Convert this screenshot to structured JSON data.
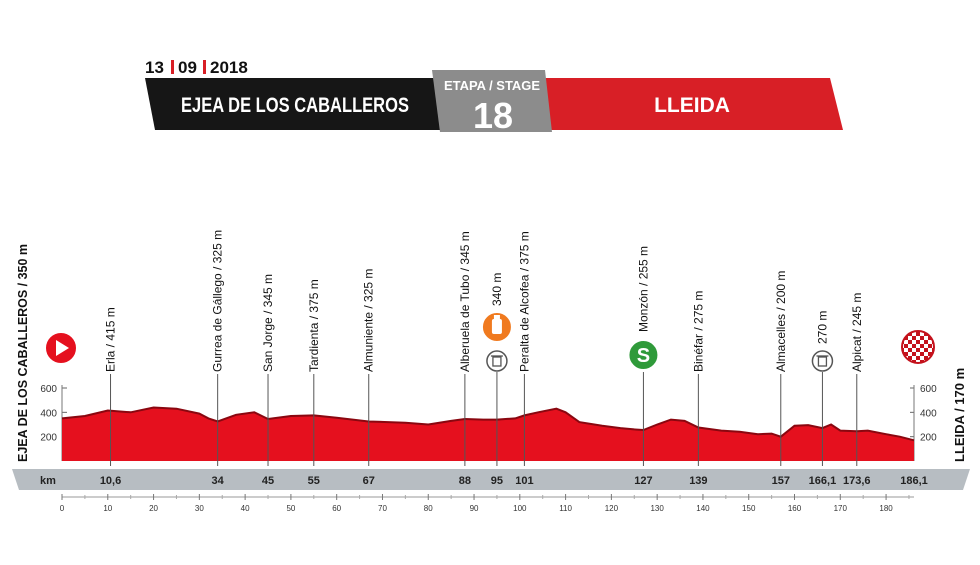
{
  "header": {
    "date_day": "13",
    "date_month": "09",
    "date_year": "2018",
    "start_city": "EJEA DE LOS CABALLEROS",
    "stage_label": "ETAPA / STAGE",
    "stage_number": "18",
    "finish_city": "LLEIDA"
  },
  "colors": {
    "profile_red": "#e5101e",
    "profile_dark": "#8a0710",
    "banner_black": "#161616",
    "banner_gray": "#8c8c8c",
    "banner_red": "#d81f26",
    "bar_gray": "#b7bdc2",
    "sprint_green": "#2f9a3a",
    "feed_orange": "#f07a1f"
  },
  "chart_data": {
    "type": "area",
    "title": "",
    "xlabel": "km",
    "ylabel": "",
    "xlim": [
      0,
      186.1
    ],
    "ylim": [
      0,
      700
    ],
    "yticks": [
      200,
      400,
      600
    ],
    "xticks": [
      0,
      10,
      20,
      30,
      40,
      50,
      60,
      70,
      80,
      90,
      100,
      110,
      120,
      130,
      140,
      150,
      160,
      170,
      180
    ],
    "start_label": "EJEA DE LOS CABALLEROS / 350 m",
    "finish_label": "LLEIDA / 170 m",
    "x_unit_label": "km",
    "profile": {
      "x": [
        0,
        5,
        10,
        15,
        20,
        25,
        30,
        32,
        34,
        38,
        42,
        45,
        50,
        55,
        60,
        67,
        75,
        80,
        85,
        88,
        92,
        95,
        99,
        101,
        104,
        108,
        110,
        113,
        118,
        122,
        125,
        127,
        130,
        133,
        136,
        139,
        144,
        148,
        152,
        155,
        157,
        160,
        163,
        166.1,
        168,
        170,
        173.6,
        176,
        180,
        183,
        186.1
      ],
      "y": [
        350,
        370,
        415,
        400,
        440,
        430,
        390,
        350,
        325,
        380,
        400,
        345,
        370,
        375,
        355,
        325,
        315,
        300,
        330,
        345,
        340,
        340,
        350,
        375,
        400,
        430,
        400,
        320,
        290,
        270,
        260,
        255,
        300,
        340,
        330,
        275,
        250,
        240,
        220,
        225,
        200,
        290,
        295,
        270,
        300,
        250,
        245,
        250,
        220,
        200,
        170
      ]
    },
    "points": [
      {
        "label": "Erla / 415 m",
        "km": 10.6,
        "km_label": "10,6",
        "icon": "none"
      },
      {
        "label": "Gurrea de Gállego / 325 m",
        "km": 34,
        "km_label": "34",
        "icon": "none"
      },
      {
        "label": "San Jorge / 345 m",
        "km": 45,
        "km_label": "45",
        "icon": "none"
      },
      {
        "label": "Tardienta / 375 m",
        "km": 55,
        "km_label": "55",
        "icon": "none"
      },
      {
        "label": "Almuniente / 325 m",
        "km": 67,
        "km_label": "67",
        "icon": "none"
      },
      {
        "label": "Alberuela de Tubo / 345 m",
        "km": 88,
        "km_label": "88",
        "icon": "none"
      },
      {
        "label": "340 m",
        "km": 95,
        "km_label": "95",
        "icon": "feed"
      },
      {
        "label": "Peralta de Alcofea / 375 m",
        "km": 101,
        "km_label": "101",
        "icon": "none"
      },
      {
        "label": "Monzón / 255 m",
        "km": 127,
        "km_label": "127",
        "icon": "sprint"
      },
      {
        "label": "Binéfar / 275 m",
        "km": 139,
        "km_label": "139",
        "icon": "none"
      },
      {
        "label": "Almacelles / 200 m",
        "km": 157,
        "km_label": "157",
        "icon": "none"
      },
      {
        "label": "270 m",
        "km": 166.1,
        "km_label": "166,1",
        "icon": "bin"
      },
      {
        "label": "Alpicat / 245 m",
        "km": 173.6,
        "km_label": "173,6",
        "icon": "none"
      },
      {
        "label": "",
        "km": 186.1,
        "km_label": "186,1",
        "icon": "none"
      }
    ]
  }
}
